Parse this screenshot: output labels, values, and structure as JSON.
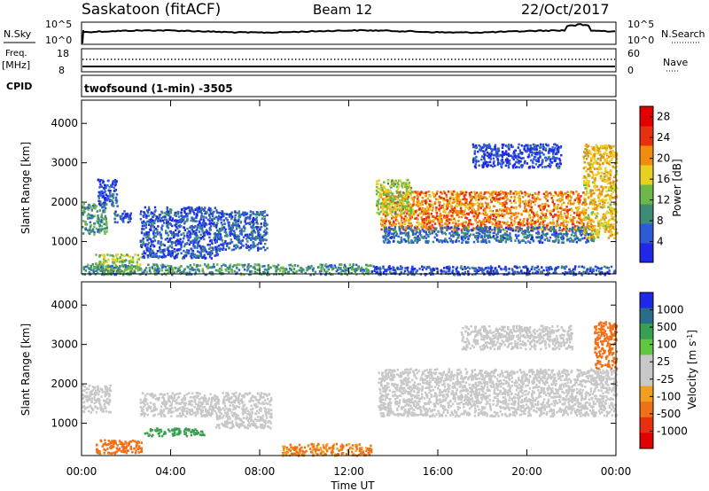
{
  "header": {
    "site": "Saskatoon (fitACF)",
    "beam": "Beam 12",
    "date": "22/Oct/2017"
  },
  "summary_panels": {
    "nsky_label": "N.Sky",
    "nsky_ticks": [
      "10^5",
      "10^0"
    ],
    "nsearch_label": "N.Search",
    "nsearch_ticks": [
      "10^5",
      "10^0"
    ],
    "freq_label_line1": "Freq.",
    "freq_label_line2": "[MHz]",
    "freq_ticks": [
      "18",
      "8"
    ],
    "nave_label": "Nave",
    "nave_ticks": [
      "60",
      "0"
    ],
    "cpid_label": "CPID",
    "cpid_text": "twofsound (1-min) -3505"
  },
  "chart_data": [
    {
      "type": "heatmap",
      "panel": "power",
      "ylabel": "Slant Range [km]",
      "yticks": [
        1000,
        2000,
        3000,
        4000
      ],
      "ylim": [
        180,
        4590
      ],
      "xlim": [
        0,
        24
      ],
      "colorbar_label": "Power [dB]",
      "colorbar_ticks": [
        4,
        8,
        12,
        16,
        20,
        24,
        28
      ],
      "colorbar_range": [
        0,
        30
      ],
      "colors": [
        "#1e28e6",
        "#2d5bd6",
        "#3c8c78",
        "#6cb84a",
        "#e8d020",
        "#f08c10",
        "#e83010",
        "#e00000"
      ],
      "regions": [
        {
          "t0": 0.0,
          "t1": 1.1,
          "r0": 1200,
          "r1": 2000,
          "level": 10
        },
        {
          "t0": 0.7,
          "t1": 1.6,
          "r0": 1900,
          "r1": 2600,
          "level": 5
        },
        {
          "t0": 1.4,
          "t1": 2.2,
          "r0": 1500,
          "r1": 1800,
          "level": 5
        },
        {
          "t0": 0.6,
          "t1": 2.6,
          "r0": 250,
          "r1": 700,
          "level": 14
        },
        {
          "t0": 2.6,
          "t1": 6.2,
          "r0": 600,
          "r1": 1900,
          "level": 5
        },
        {
          "t0": 6.2,
          "t1": 8.3,
          "r0": 800,
          "r1": 1800,
          "level": 6
        },
        {
          "t0": 0.0,
          "t1": 13.0,
          "r0": 180,
          "r1": 450,
          "level": 10
        },
        {
          "t0": 13.4,
          "t1": 22.5,
          "r0": 1300,
          "r1": 2300,
          "level": 21
        },
        {
          "t0": 13.2,
          "t1": 14.8,
          "r0": 1700,
          "r1": 2600,
          "level": 15
        },
        {
          "t0": 13.5,
          "t1": 23.0,
          "r0": 1000,
          "r1": 1400,
          "level": 7
        },
        {
          "t0": 22.5,
          "t1": 24.0,
          "r0": 1100,
          "r1": 3500,
          "level": 18
        },
        {
          "t0": 17.5,
          "t1": 21.5,
          "r0": 2900,
          "r1": 3500,
          "level": 4
        },
        {
          "t0": 13.0,
          "t1": 24.0,
          "r0": 180,
          "r1": 400,
          "level": 5
        }
      ]
    },
    {
      "type": "heatmap",
      "panel": "velocity",
      "xlabel": "Time UT",
      "xticks": [
        "00:00",
        "04:00",
        "08:00",
        "12:00",
        "16:00",
        "20:00",
        "00:00"
      ],
      "ylabel": "Slant Range [km]",
      "yticks": [
        1000,
        2000,
        3000,
        4000
      ],
      "ylim": [
        180,
        4590
      ],
      "xlim": [
        0,
        24
      ],
      "colorbar_label": "Velocity [m s^-1]",
      "colorbar_ticks": [
        "1000",
        "500",
        "100",
        "25",
        "-25",
        "-100",
        "-500",
        "-1000"
      ],
      "colors": [
        "#1e28e6",
        "#2a6c8c",
        "#38a050",
        "#60c840",
        "#c8c8c8",
        "#c8c8c8",
        "#f0a020",
        "#f07018",
        "#e83010",
        "#e00000"
      ],
      "regions": [
        {
          "t0": 0.0,
          "t1": 1.3,
          "r0": 1300,
          "r1": 2000,
          "vel": 0
        },
        {
          "t0": 2.6,
          "t1": 6.0,
          "r0": 1200,
          "r1": 1800,
          "vel": 0
        },
        {
          "t0": 6.0,
          "t1": 8.5,
          "r0": 900,
          "r1": 1800,
          "vel": 0
        },
        {
          "t0": 0.6,
          "t1": 2.7,
          "r0": 250,
          "r1": 600,
          "vel": -250
        },
        {
          "t0": 2.8,
          "t1": 5.5,
          "r0": 700,
          "r1": 900,
          "vel": 200
        },
        {
          "t0": 9.0,
          "t1": 13.0,
          "r0": 200,
          "r1": 500,
          "vel": -120
        },
        {
          "t0": 13.3,
          "t1": 24.0,
          "r0": 1200,
          "r1": 2400,
          "vel": 0
        },
        {
          "t0": 23.0,
          "t1": 24.0,
          "r0": 2400,
          "r1": 3600,
          "vel": -300
        },
        {
          "t0": 17.0,
          "t1": 22.0,
          "r0": 2900,
          "r1": 3500,
          "vel": 0
        }
      ]
    }
  ]
}
